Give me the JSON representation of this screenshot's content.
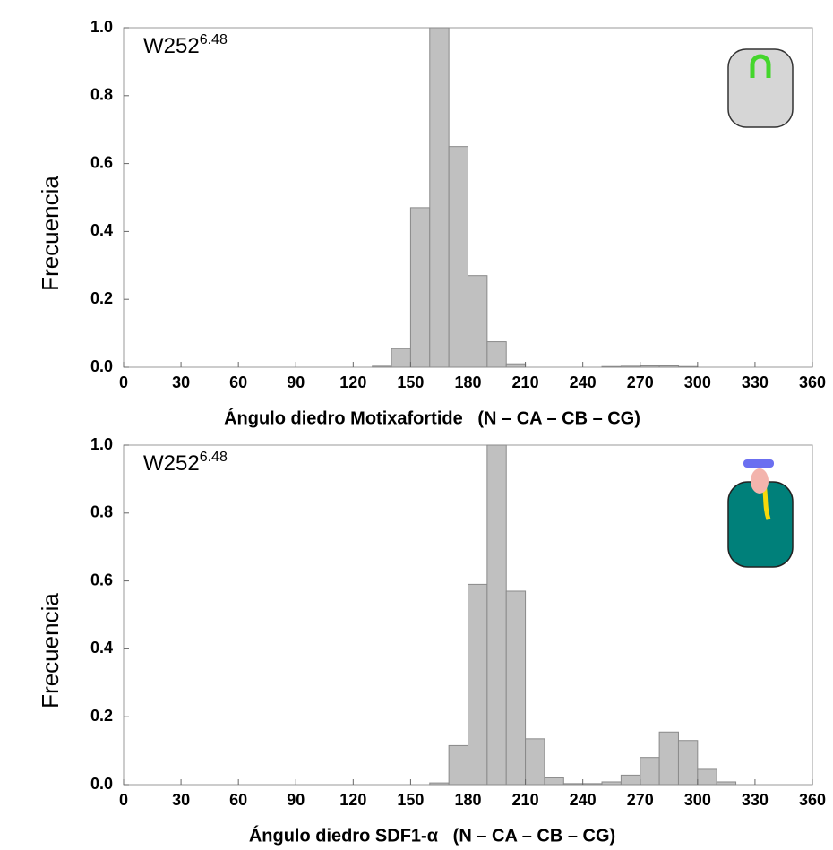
{
  "chart_data": [
    {
      "type": "histogram",
      "panel_label": "W252",
      "panel_label_sup": "6.48",
      "xlabel": "Ángulo diedro Motixafortide   (N – CA – CB – CG)",
      "ylabel": "Frecuencia",
      "bins": [
        130,
        140,
        150,
        160,
        170,
        180,
        190,
        200,
        210,
        220,
        230,
        240,
        250,
        260,
        270,
        280,
        290,
        300
      ],
      "counts": [
        0.003,
        0.055,
        0.47,
        1.0,
        0.65,
        0.27,
        0.075,
        0.01,
        0,
        0,
        0,
        0,
        0.002,
        0.003,
        0.004,
        0.004,
        0.002
      ],
      "color": "#c0c0c0",
      "xlim": [
        0,
        360
      ],
      "xticks": [
        0,
        30,
        60,
        90,
        120,
        150,
        180,
        210,
        240,
        270,
        300,
        330,
        360
      ],
      "ylim": [
        0,
        1
      ],
      "yticks": [
        {
          "value": 0,
          "label": "0.0"
        },
        0.2,
        0.4,
        0.6,
        0.8,
        {
          "value": 1,
          "label": "1.0"
        }
      ]
    },
    {
      "type": "histogram",
      "panel_label": "W252",
      "panel_label_sup": "6.48",
      "xlabel": "Ángulo diedro SDF1-α   (N – CA – CB – CG)",
      "ylabel": "Frecuencia",
      "bins": [
        160,
        170,
        180,
        190,
        200,
        210,
        220,
        230,
        240,
        250,
        260,
        270,
        280,
        290,
        300,
        310,
        320
      ],
      "counts": [
        0.005,
        0.115,
        0.59,
        1.0,
        0.57,
        0.135,
        0.02,
        0.003,
        0.003,
        0.008,
        0.028,
        0.08,
        0.155,
        0.13,
        0.045,
        0.008
      ],
      "color": "#c0c0c0",
      "xlim": [
        0,
        360
      ],
      "xticks": [
        0,
        30,
        60,
        90,
        120,
        150,
        180,
        210,
        240,
        270,
        300,
        330,
        360
      ],
      "ylim": [
        0,
        1
      ],
      "yticks": [
        {
          "value": 0,
          "label": "0.0"
        },
        0.2,
        0.4,
        0.6,
        0.8,
        {
          "value": 1,
          "label": "1.0"
        }
      ]
    }
  ]
}
